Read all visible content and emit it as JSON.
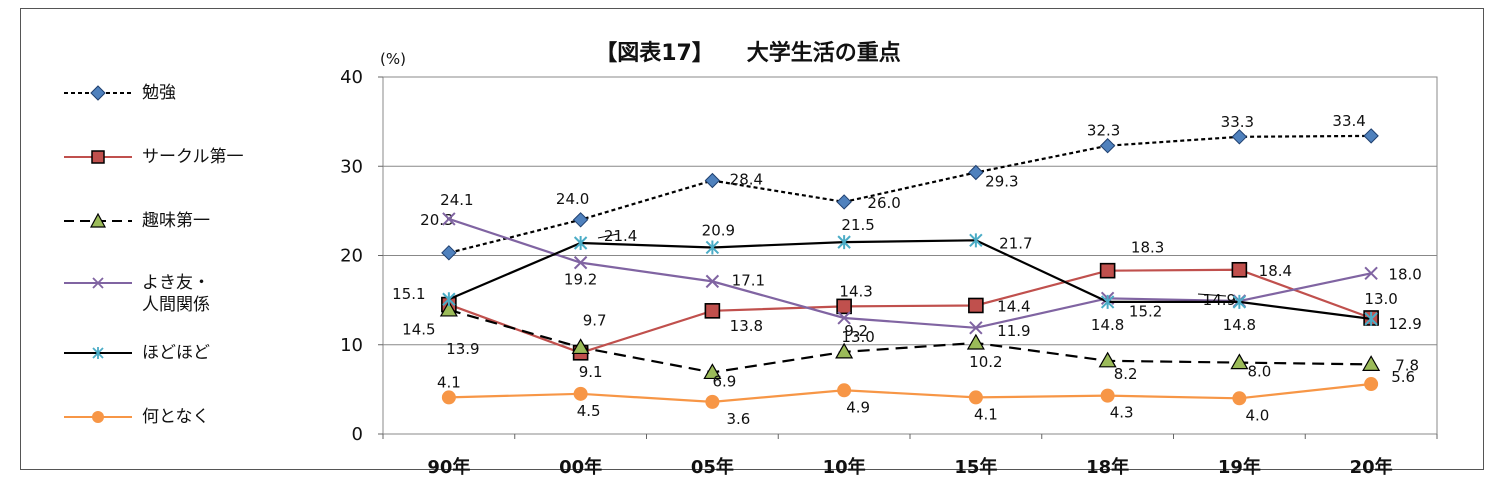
{
  "colors": {
    "benkyo": "#4f81bd",
    "circle": "#c0504d",
    "shumi": "#9bbb59",
    "tomo": "#8064a2",
    "hodo": "#000000",
    "hodo_marker": "#4bacc6",
    "nantonaku": "#f79646"
  },
  "chart_data": {
    "type": "line",
    "title": "【図表17】　　大学生活の重点",
    "ylabel": "(%)",
    "categories": [
      "90年",
      "00年",
      "05年",
      "10年",
      "15年",
      "18年",
      "19年",
      "20年"
    ],
    "yticks": [
      "0",
      "10",
      "20",
      "30",
      "40"
    ],
    "ylim": [
      0,
      40
    ],
    "grid": true,
    "legend": "left",
    "series": [
      {
        "key": "benkyo",
        "name": "勉強",
        "values": [
          20.3,
          24.0,
          28.4,
          26.0,
          29.3,
          32.3,
          33.3,
          33.4
        ],
        "labels": [
          "20.3",
          "24.0",
          "28.4",
          "26.0",
          "29.3",
          "32.3",
          "33.3",
          "33.4"
        ],
        "color": "#4f81bd",
        "line": "dotted",
        "marker": "diamond"
      },
      {
        "key": "circle",
        "name": "サークル第一",
        "values": [
          14.5,
          9.1,
          13.8,
          14.3,
          14.4,
          18.3,
          18.4,
          13.0
        ],
        "labels": [
          "14.5",
          "9.1",
          "13.8",
          "14.3",
          "14.4",
          "18.3",
          "18.4",
          "13.0"
        ],
        "color": "#c0504d",
        "line": "solid",
        "marker": "square"
      },
      {
        "key": "shumi",
        "name": "趣味第一",
        "values": [
          13.9,
          9.7,
          6.9,
          9.2,
          10.2,
          8.2,
          8.0,
          7.8
        ],
        "labels": [
          "13.9",
          "9.7",
          "6.9",
          "9.2",
          "10.2",
          "8.2",
          "8.0",
          "7.8"
        ],
        "color": "#000000",
        "line": "dashed",
        "marker": "triangle"
      },
      {
        "key": "tomo",
        "name": "よき友・\n人間関係",
        "values": [
          24.1,
          19.2,
          17.1,
          13.0,
          11.9,
          15.2,
          14.9,
          18.0
        ],
        "labels": [
          "24.1",
          "19.2",
          "17.1",
          "13.0",
          "11.9",
          "15.2",
          "14.9",
          "18.0"
        ],
        "color": "#8064a2",
        "line": "solid",
        "marker": "x"
      },
      {
        "key": "hodo",
        "name": "ほどほど",
        "values": [
          15.1,
          21.4,
          20.9,
          21.5,
          21.7,
          14.8,
          14.8,
          12.9
        ],
        "labels": [
          "15.1",
          "21.4",
          "20.9",
          "21.5",
          "21.7",
          "14.8",
          "14.8",
          "12.9"
        ],
        "color": "#000000",
        "line": "solid",
        "marker": "star"
      },
      {
        "key": "nantonaku",
        "name": "何となく",
        "values": [
          4.1,
          4.5,
          3.6,
          4.9,
          4.1,
          4.3,
          4.0,
          5.6
        ],
        "labels": [
          "4.1",
          "4.5",
          "3.6",
          "4.9",
          "4.1",
          "4.3",
          "4.0",
          "5.6"
        ],
        "color": "#f79646",
        "line": "solid",
        "marker": "circle"
      }
    ]
  }
}
